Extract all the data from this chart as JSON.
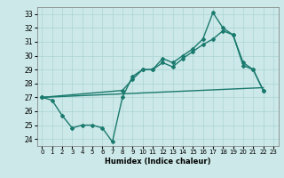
{
  "xlabel": "Humidex (Indice chaleur)",
  "background_color": "#cce8e8",
  "grid_color": "#aad4d4",
  "line_color": "#1a7a6e",
  "xlim": [
    -0.5,
    23.5
  ],
  "ylim": [
    23.5,
    33.5
  ],
  "yticks": [
    24,
    25,
    26,
    27,
    28,
    29,
    30,
    31,
    32,
    33
  ],
  "xticks": [
    0,
    1,
    2,
    3,
    4,
    5,
    6,
    7,
    8,
    9,
    10,
    11,
    12,
    13,
    14,
    15,
    16,
    17,
    18,
    19,
    20,
    21,
    22,
    23
  ],
  "series": [
    {
      "x": [
        0,
        1,
        2,
        3,
        4,
        5,
        6,
        7,
        8,
        9,
        10,
        11,
        12,
        13,
        14,
        15,
        16,
        17,
        18,
        19,
        20,
        21,
        22
      ],
      "y": [
        27.0,
        26.8,
        25.7,
        24.8,
        25.0,
        25.0,
        24.8,
        23.8,
        27.0,
        28.5,
        29.0,
        29.0,
        29.8,
        29.5,
        30.0,
        30.5,
        31.2,
        33.1,
        32.0,
        31.5,
        29.5,
        29.0,
        27.5
      ],
      "marker": "D",
      "markersize": 2.0,
      "linewidth": 1.0
    },
    {
      "x": [
        0,
        8,
        9,
        10,
        11,
        12,
        13,
        14,
        15,
        16,
        17,
        18,
        19,
        20,
        21,
        22
      ],
      "y": [
        27.0,
        27.5,
        28.3,
        29.0,
        29.0,
        29.5,
        29.2,
        29.8,
        30.3,
        30.8,
        31.2,
        31.8,
        31.5,
        29.3,
        29.0,
        27.5
      ],
      "marker": "D",
      "markersize": 2.0,
      "linewidth": 1.0
    },
    {
      "x": [
        0,
        22
      ],
      "y": [
        27.0,
        27.7
      ],
      "marker": null,
      "markersize": 0,
      "linewidth": 1.0
    }
  ]
}
